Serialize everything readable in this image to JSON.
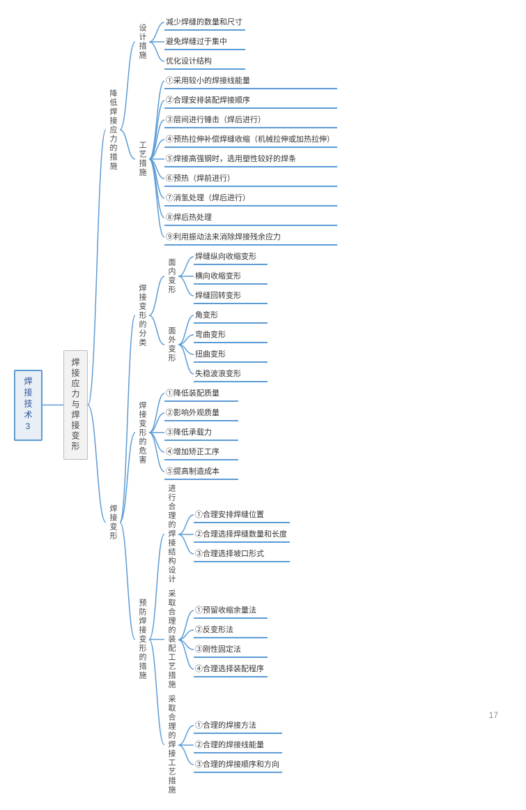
{
  "page_number": "17",
  "stroke_color": "#5b9bd5",
  "stroke_width": 1.5,
  "root": {
    "label": "焊接技术3",
    "box_bg": "#e8eff7",
    "box_border": "#5b9bd5"
  },
  "lvl2": {
    "label": "焊接应力与焊接变形",
    "box_bg": "#f2f2f2",
    "box_border": "#bbbbbb"
  },
  "branches": [
    {
      "label": "降低焊接应力的措施",
      "children": [
        {
          "label": "设计措施",
          "leaves": [
            "减少焊缝的数量和尺寸",
            "避免焊缝过于集中",
            "优化设计结构"
          ]
        },
        {
          "label": "工艺措施",
          "leaves": [
            "①采用较小的焊接线能量",
            "②合理安排装配焊接顺序",
            "③层间进行锤击（焊后进行）",
            "④预热拉伸补偿焊缝收缩（机械拉伸或加热拉伸）",
            "⑤焊接高强钢时，选用塑性较好的焊条",
            "⑥预热（焊前进行）",
            "⑦消氢处理（焊后进行）",
            "⑧焊后热处理",
            "⑨利用振动法来消除焊接残余应力"
          ]
        }
      ]
    },
    {
      "label": "焊接变形",
      "children": [
        {
          "label": "焊接变形的分类",
          "children": [
            {
              "label": "面内变形",
              "leaves": [
                "焊缝纵向收缩变形",
                "横向收缩变形",
                "焊缝回转变形"
              ]
            },
            {
              "label": "面外变形",
              "leaves": [
                "角变形",
                "弯曲变形",
                "扭曲变形",
                "失稳波浪变形"
              ]
            }
          ]
        },
        {
          "label": "焊接变形的危害",
          "leaves": [
            "①降低装配质量",
            "②影响外观质量",
            "③降低承载力",
            "④增加矫正工序",
            "⑤提高制造成本"
          ]
        },
        {
          "label": "预防焊接变形的措施",
          "children": [
            {
              "label": "进行合理的焊接结构设计",
              "leaves": [
                "①合理安排焊缝位置",
                "②合理选择焊缝数量和长度",
                "③合理选择坡口形式"
              ]
            },
            {
              "label": "采取合理的装配工艺措施",
              "leaves": [
                "①预留收缩余量法",
                "②反变形法",
                "③刚性固定法",
                "④合理选择装配程序"
              ]
            },
            {
              "label": "采取合理的焊接工艺措施",
              "leaves": [
                "①合理的焊接方法",
                "②合理的焊接线能量",
                "③合理的焊接顺序和方向"
              ]
            }
          ]
        }
      ]
    }
  ]
}
